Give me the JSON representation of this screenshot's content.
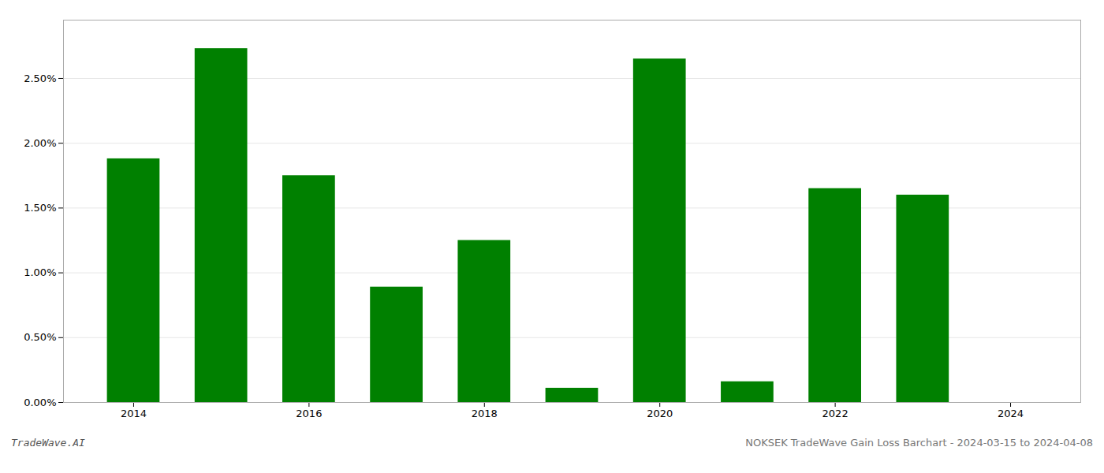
{
  "chart_data": {
    "type": "bar",
    "x": [
      2014,
      2015,
      2016,
      2017,
      2018,
      2019,
      2020,
      2021,
      2022,
      2023,
      2024
    ],
    "values": [
      0.0188,
      0.0273,
      0.0175,
      0.0089,
      0.0125,
      0.0011,
      0.0265,
      0.0016,
      0.0165,
      0.016,
      0.0
    ],
    "color": "#008000",
    "xlim": [
      2013.2,
      2024.8
    ],
    "xticks": [
      2014,
      2016,
      2018,
      2020,
      2022,
      2024
    ],
    "ylim": [
      0,
      0.0295
    ],
    "yticks": [
      {
        "value": 0.0,
        "label": "0.00%"
      },
      {
        "value": 0.005,
        "label": "0.50%"
      },
      {
        "value": 0.01,
        "label": "1.00%"
      },
      {
        "value": 0.015,
        "label": "1.50%"
      },
      {
        "value": 0.02,
        "label": "2.00%"
      },
      {
        "value": 0.025,
        "label": "2.50%"
      }
    ],
    "grid": true,
    "annotations": [
      "TradeWave.AI",
      "NOKSEK TradeWave Gain Loss Barchart - 2024-03-15 to 2024-04-08"
    ]
  }
}
